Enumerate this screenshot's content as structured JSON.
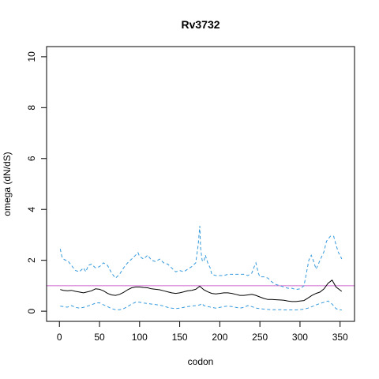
{
  "chart_data": {
    "type": "line",
    "title": "Rv3732",
    "xlabel": "codon",
    "ylabel": "omega (dN/dS)",
    "xlim": [
      -16,
      368
    ],
    "ylim": [
      -0.4,
      10.4
    ],
    "xticks": [
      0,
      50,
      100,
      150,
      200,
      250,
      300,
      350
    ],
    "yticks": [
      0,
      2,
      4,
      6,
      8,
      10
    ],
    "grid": false,
    "reference_line": {
      "y": 1,
      "color": "#cc66cc"
    },
    "series": [
      {
        "role": "estimate",
        "color": "#000000",
        "style": "solid",
        "x": [
          1,
          5,
          10,
          15,
          20,
          25,
          30,
          35,
          40,
          45,
          50,
          55,
          60,
          65,
          70,
          75,
          80,
          85,
          90,
          95,
          100,
          105,
          110,
          115,
          120,
          125,
          130,
          135,
          140,
          145,
          150,
          155,
          160,
          165,
          170,
          175,
          178,
          180,
          185,
          190,
          195,
          200,
          205,
          210,
          215,
          220,
          225,
          230,
          235,
          240,
          245,
          250,
          255,
          260,
          265,
          270,
          275,
          280,
          285,
          290,
          295,
          300,
          305,
          310,
          315,
          320,
          325,
          330,
          335,
          340,
          345,
          352
        ],
        "y": [
          0.85,
          0.82,
          0.8,
          0.82,
          0.78,
          0.75,
          0.72,
          0.76,
          0.8,
          0.88,
          0.86,
          0.8,
          0.7,
          0.64,
          0.62,
          0.66,
          0.74,
          0.84,
          0.92,
          0.95,
          0.95,
          0.93,
          0.92,
          0.88,
          0.86,
          0.84,
          0.8,
          0.76,
          0.72,
          0.7,
          0.72,
          0.76,
          0.8,
          0.82,
          0.86,
          0.98,
          0.9,
          0.84,
          0.76,
          0.7,
          0.68,
          0.7,
          0.72,
          0.72,
          0.7,
          0.66,
          0.62,
          0.62,
          0.64,
          0.66,
          0.62,
          0.56,
          0.5,
          0.46,
          0.46,
          0.45,
          0.44,
          0.43,
          0.4,
          0.38,
          0.38,
          0.4,
          0.42,
          0.52,
          0.62,
          0.7,
          0.75,
          0.88,
          1.1,
          1.22,
          0.95,
          0.78
        ]
      },
      {
        "role": "upper-bound",
        "color": "#3399dd",
        "style": "dashed",
        "x": [
          1,
          3,
          5,
          8,
          10,
          15,
          20,
          25,
          30,
          33,
          36,
          40,
          45,
          50,
          55,
          60,
          65,
          70,
          75,
          80,
          85,
          90,
          95,
          98,
          100,
          105,
          110,
          115,
          120,
          125,
          130,
          135,
          140,
          145,
          150,
          155,
          160,
          165,
          170,
          173,
          175,
          176,
          178,
          180,
          182,
          185,
          188,
          190,
          195,
          200,
          205,
          210,
          215,
          220,
          225,
          230,
          235,
          240,
          243,
          245,
          248,
          250,
          255,
          260,
          265,
          270,
          275,
          280,
          285,
          290,
          295,
          300,
          305,
          308,
          311,
          314,
          316,
          320,
          325,
          330,
          333,
          338,
          342,
          345,
          348,
          350,
          352
        ],
        "y": [
          2.45,
          2.15,
          2.05,
          2.0,
          2.0,
          1.8,
          1.6,
          1.55,
          1.7,
          1.55,
          1.8,
          1.85,
          1.7,
          1.75,
          1.9,
          1.8,
          1.5,
          1.3,
          1.45,
          1.7,
          1.9,
          2.05,
          2.2,
          2.3,
          2.15,
          2.05,
          2.2,
          2.0,
          1.95,
          2.05,
          1.9,
          1.85,
          1.7,
          1.55,
          1.6,
          1.55,
          1.65,
          1.75,
          1.9,
          2.6,
          3.35,
          2.5,
          2.0,
          1.95,
          2.2,
          1.9,
          1.7,
          1.45,
          1.4,
          1.4,
          1.4,
          1.45,
          1.45,
          1.45,
          1.45,
          1.45,
          1.4,
          1.5,
          1.75,
          1.9,
          1.5,
          1.35,
          1.35,
          1.3,
          1.15,
          1.05,
          1.0,
          0.95,
          0.9,
          0.9,
          0.85,
          0.88,
          1.0,
          1.5,
          2.0,
          2.2,
          2.05,
          1.65,
          2.0,
          2.35,
          2.75,
          2.95,
          2.95,
          2.6,
          2.3,
          2.2,
          2.05
        ]
      },
      {
        "role": "lower-bound",
        "color": "#3399dd",
        "style": "dashed",
        "x": [
          1,
          5,
          10,
          15,
          20,
          25,
          30,
          35,
          40,
          45,
          50,
          55,
          60,
          65,
          70,
          75,
          80,
          85,
          90,
          95,
          100,
          105,
          110,
          115,
          120,
          125,
          130,
          135,
          140,
          145,
          150,
          155,
          160,
          165,
          170,
          175,
          178,
          180,
          185,
          190,
          195,
          200,
          205,
          210,
          215,
          220,
          225,
          230,
          235,
          240,
          245,
          250,
          255,
          260,
          265,
          270,
          275,
          280,
          285,
          290,
          295,
          300,
          305,
          310,
          315,
          320,
          325,
          330,
          335,
          340,
          345,
          350,
          352
        ],
        "y": [
          0.2,
          0.18,
          0.16,
          0.22,
          0.15,
          0.12,
          0.15,
          0.2,
          0.25,
          0.32,
          0.33,
          0.25,
          0.18,
          0.1,
          0.06,
          0.06,
          0.1,
          0.18,
          0.28,
          0.35,
          0.35,
          0.32,
          0.3,
          0.28,
          0.26,
          0.24,
          0.2,
          0.15,
          0.12,
          0.1,
          0.12,
          0.15,
          0.18,
          0.2,
          0.22,
          0.25,
          0.3,
          0.22,
          0.18,
          0.15,
          0.12,
          0.15,
          0.18,
          0.2,
          0.18,
          0.15,
          0.12,
          0.15,
          0.22,
          0.18,
          0.12,
          0.1,
          0.08,
          0.07,
          0.06,
          0.06,
          0.06,
          0.05,
          0.05,
          0.05,
          0.05,
          0.06,
          0.08,
          0.12,
          0.18,
          0.25,
          0.3,
          0.35,
          0.4,
          0.28,
          0.1,
          0.05,
          0.05
        ]
      }
    ]
  }
}
